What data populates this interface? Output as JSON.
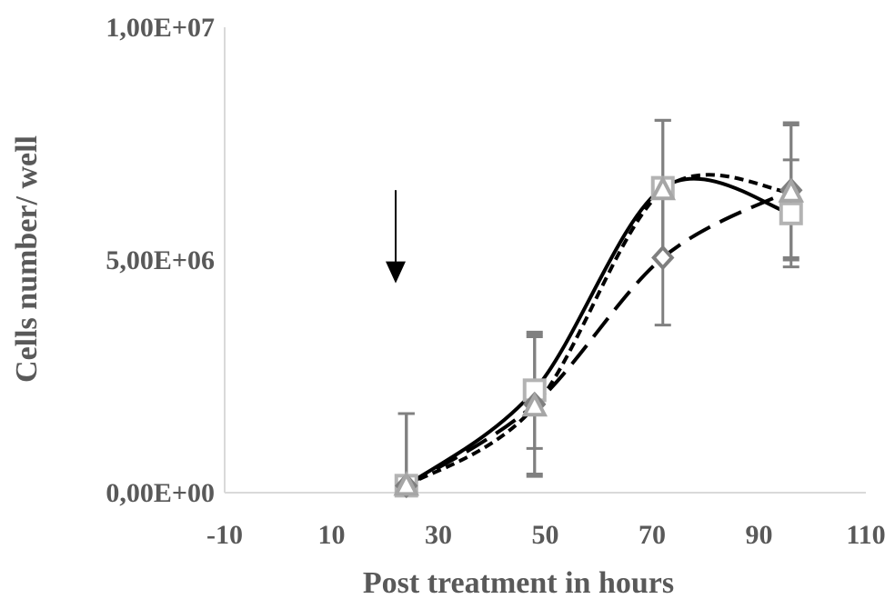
{
  "chart_data": {
    "type": "line",
    "title": "",
    "xlabel": "Post treatment in hours",
    "ylabel": "Cells number/ well",
    "xlim": [
      -10,
      110
    ],
    "ylim": [
      0,
      10000000
    ],
    "x_ticks": [
      "-10",
      "10",
      "30",
      "50",
      "70",
      "90",
      "110"
    ],
    "y_ticks": [
      "0,00E+00",
      "5,00E+06",
      "1,00E+07"
    ],
    "grid": false,
    "legend": "none",
    "annotations": [
      {
        "type": "arrow-down",
        "x": 22,
        "y_from": 6500000,
        "y_to": 4500000
      }
    ],
    "series": [
      {
        "marker": "square",
        "line": "solid",
        "line_color": "#000000",
        "marker_color": "#b3b3b3",
        "x": [
          24,
          48,
          72,
          96
        ],
        "y": [
          150000,
          2200000,
          6550000,
          6000000
        ],
        "err": [
          1550000,
          1250000,
          1450000,
          1150000
        ]
      },
      {
        "marker": "diamond",
        "line": "long-dash",
        "line_color": "#000000",
        "marker_color": "#7f7f7f",
        "x": [
          24,
          48,
          72,
          96
        ],
        "y": [
          150000,
          1900000,
          5050000,
          6500000
        ],
        "err": [
          1550000,
          1500000,
          1450000,
          1450000
        ]
      },
      {
        "marker": "triangle",
        "line": "short-dash",
        "line_color": "#000000",
        "marker_color": "#a6a6a6",
        "x": [
          24,
          48,
          72,
          96
        ],
        "y": [
          150000,
          1850000,
          6500000,
          6450000
        ],
        "err": [
          1550000,
          1500000,
          1500000,
          1450000
        ]
      }
    ]
  }
}
